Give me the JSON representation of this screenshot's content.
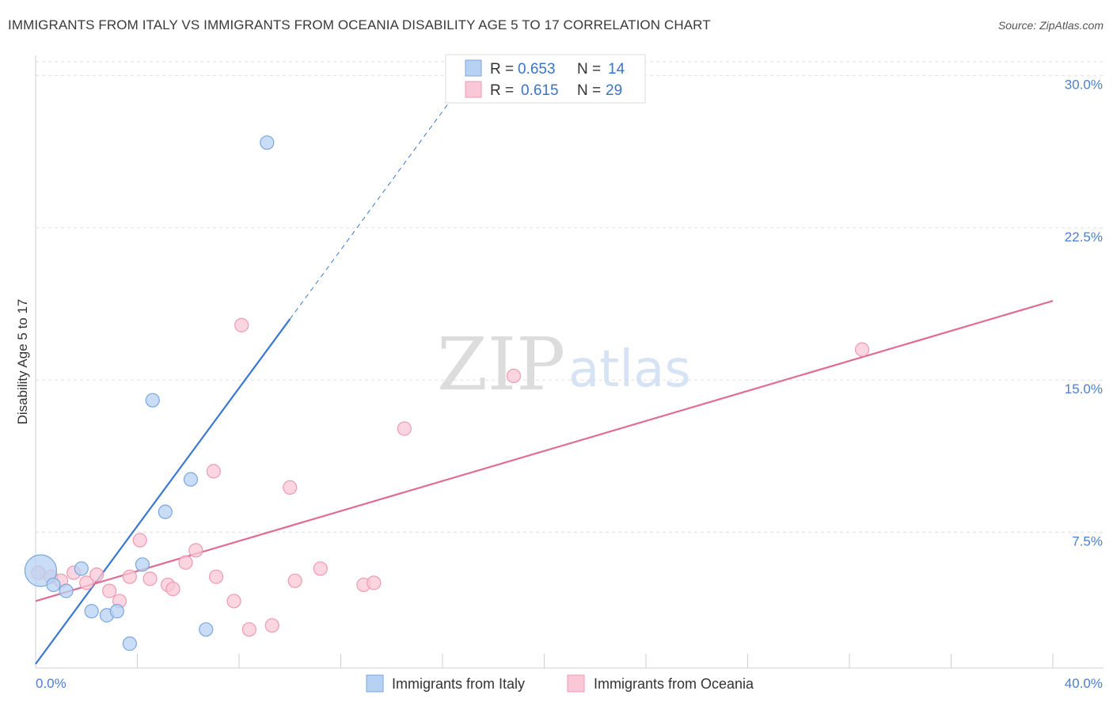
{
  "header": {
    "title": "IMMIGRANTS FROM ITALY VS IMMIGRANTS FROM OCEANIA DISABILITY AGE 5 TO 17 CORRELATION CHART",
    "source": "Source: ZipAtlas.com"
  },
  "legend": {
    "items": [
      {
        "r_label": "R =",
        "r_value": "0.653",
        "n_label": "N =",
        "n_value": "14"
      },
      {
        "r_label": "R =",
        "r_value": "0.615",
        "n_label": "N =",
        "n_value": "29"
      }
    ]
  },
  "watermark": {
    "zip": "ZIP",
    "atlas": "atlas"
  },
  "colors": {
    "italy_fill": "#b7d1f3",
    "italy_stroke": "#7aa6df",
    "italy_line": "#3a78d0",
    "oceania_fill": "#f9c7d6",
    "oceania_stroke": "#ee9ab3",
    "oceania_line": "#e06b94",
    "grid": "#dddddd"
  },
  "chart_data": {
    "type": "scatter",
    "title": "IMMIGRANTS FROM ITALY VS IMMIGRANTS FROM OCEANIA DISABILITY AGE 5 TO 17 CORRELATION CHART",
    "xlabel": "",
    "ylabel": "Disability Age 5 to 17",
    "xlim": [
      0,
      40
    ],
    "ylim": [
      0.8,
      31.0
    ],
    "x_tick_labels": [
      "0.0%",
      "40.0%"
    ],
    "y_ticks": [
      {
        "value": 7.5,
        "label": "7.5%"
      },
      {
        "value": 15.0,
        "label": "15.0%"
      },
      {
        "value": 22.5,
        "label": "22.5%"
      },
      {
        "value": 30.0,
        "label": "30.0%"
      }
    ],
    "series": [
      {
        "name": "Immigrants from Italy",
        "r": 0.653,
        "n": 14,
        "points": [
          {
            "x": 0.2,
            "y": 5.6,
            "big": true
          },
          {
            "x": 0.7,
            "y": 4.9
          },
          {
            "x": 1.2,
            "y": 4.6
          },
          {
            "x": 1.8,
            "y": 5.7
          },
          {
            "x": 2.2,
            "y": 3.6
          },
          {
            "x": 2.8,
            "y": 3.4
          },
          {
            "x": 3.2,
            "y": 3.6
          },
          {
            "x": 3.7,
            "y": 2.0
          },
          {
            "x": 4.2,
            "y": 5.9
          },
          {
            "x": 4.6,
            "y": 14.0
          },
          {
            "x": 5.1,
            "y": 8.5
          },
          {
            "x": 6.1,
            "y": 10.1
          },
          {
            "x": 6.7,
            "y": 2.7
          },
          {
            "x": 9.1,
            "y": 26.7
          }
        ],
        "trend": {
          "x0": 0,
          "y0": 1.0,
          "x1": 10.0,
          "y1": 18.0,
          "dash_to_x": 17.5,
          "dash_to_y": 30.8
        }
      },
      {
        "name": "Immigrants from Oceania",
        "r": 0.615,
        "n": 29,
        "points": [
          {
            "x": 0.6,
            "y": 5.3
          },
          {
            "x": 1.0,
            "y": 5.1
          },
          {
            "x": 1.5,
            "y": 5.5
          },
          {
            "x": 2.0,
            "y": 5.0
          },
          {
            "x": 2.4,
            "y": 5.4
          },
          {
            "x": 2.9,
            "y": 4.6
          },
          {
            "x": 3.3,
            "y": 4.1
          },
          {
            "x": 3.7,
            "y": 5.3
          },
          {
            "x": 4.1,
            "y": 7.1
          },
          {
            "x": 4.5,
            "y": 5.2
          },
          {
            "x": 5.2,
            "y": 4.9
          },
          {
            "x": 5.4,
            "y": 4.7
          },
          {
            "x": 5.9,
            "y": 6.0
          },
          {
            "x": 6.3,
            "y": 6.6
          },
          {
            "x": 7.0,
            "y": 10.5
          },
          {
            "x": 7.1,
            "y": 5.3
          },
          {
            "x": 7.8,
            "y": 4.1
          },
          {
            "x": 8.1,
            "y": 17.7
          },
          {
            "x": 8.4,
            "y": 2.7
          },
          {
            "x": 9.3,
            "y": 2.9
          },
          {
            "x": 10.0,
            "y": 9.7
          },
          {
            "x": 10.2,
            "y": 5.1
          },
          {
            "x": 11.2,
            "y": 5.7
          },
          {
            "x": 12.9,
            "y": 4.9
          },
          {
            "x": 13.3,
            "y": 5.0
          },
          {
            "x": 14.5,
            "y": 12.6
          },
          {
            "x": 18.8,
            "y": 15.2
          },
          {
            "x": 32.5,
            "y": 16.5
          },
          {
            "x": 0.1,
            "y": 5.5
          }
        ],
        "trend": {
          "x0": 0,
          "y0": 4.1,
          "x1": 40,
          "y1": 18.9
        }
      }
    ]
  }
}
